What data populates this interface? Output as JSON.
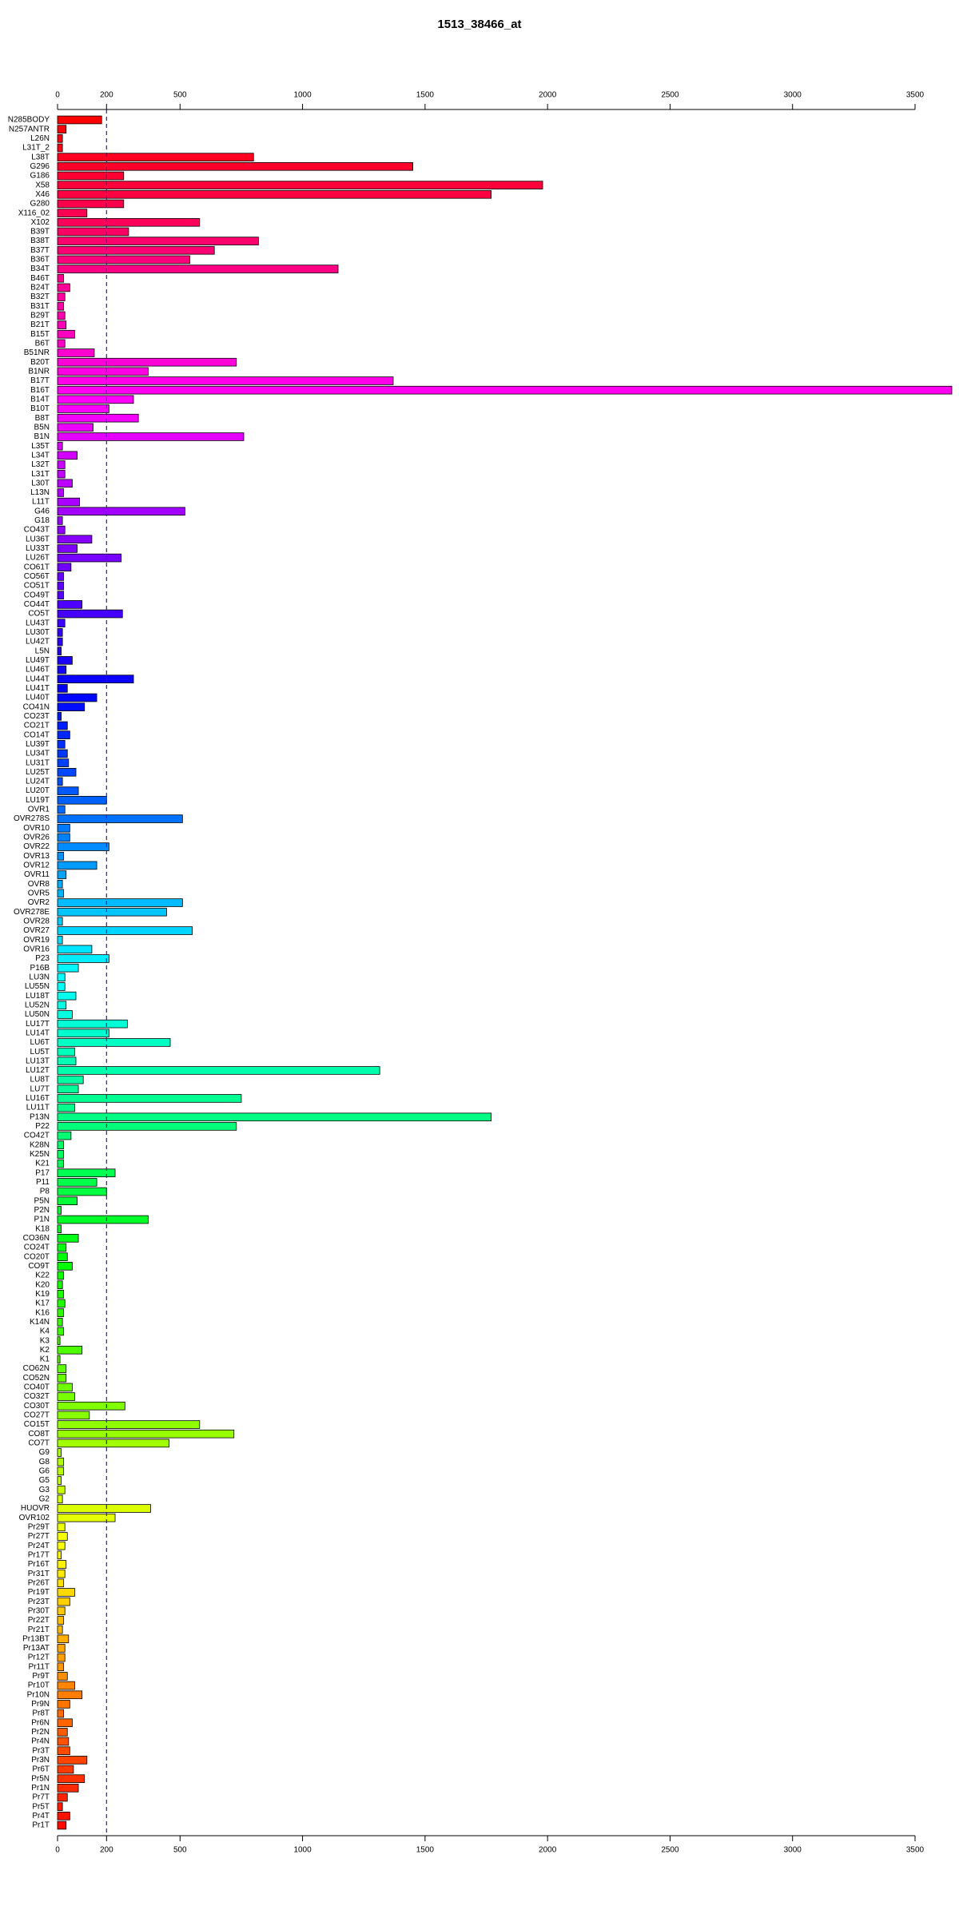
{
  "chart_data": {
    "type": "hbar",
    "title": "1513_38466_at",
    "categories": [
      "N285BODY",
      "N257ANTR",
      "L26N",
      "L31T_2",
      "L38T",
      "G296",
      "G186",
      "X58",
      "X46",
      "G280",
      "X116_02",
      "X102",
      "B39T",
      "B38T",
      "B37T",
      "B36T",
      "B34T",
      "B46T",
      "B24T",
      "B32T",
      "B31T",
      "B29T",
      "B21T",
      "B15T",
      "B6T",
      "B51NR",
      "B20T",
      "B1NR",
      "B17T",
      "B16T",
      "B14T",
      "B10T",
      "B8T",
      "B5N",
      "B1N",
      "L35T",
      "L34T",
      "L32T",
      "L31T",
      "L30T",
      "L13N",
      "L11T",
      "G46",
      "G18",
      "CO43T",
      "LU36T",
      "LU33T",
      "LU26T",
      "CO61T",
      "CO56T",
      "CO51T",
      "CO49T",
      "CO44T",
      "CO5T",
      "LU43T",
      "LU30T",
      "LU42T",
      "L5N",
      "LU49T",
      "LU46T",
      "LU44T",
      "LU41T",
      "LU40T",
      "CO41N",
      "CO23T",
      "CO21T",
      "CO14T",
      "LU39T",
      "LU34T",
      "LU31T",
      "LU25T",
      "LU24T",
      "LU20T",
      "LU19T",
      "OVR1",
      "OVR278S",
      "OVR10",
      "OVR26",
      "OVR22",
      "OVR13",
      "OVR12",
      "OVR11",
      "OVR8",
      "OVR5",
      "OVR2",
      "OVR278E",
      "OVR28",
      "OVR27",
      "OVR19",
      "OVR16",
      "P23",
      "P16B",
      "LU3N",
      "LU55N",
      "LU18T",
      "LU52N",
      "LU50N",
      "LU17T",
      "LU14T",
      "LU6T",
      "LU5T",
      "LU13T",
      "LU12T",
      "LU8T",
      "LU7T",
      "LU16T",
      "LU11T",
      "P13N",
      "P22",
      "CO42T",
      "K28N",
      "K25N",
      "K21",
      "P17",
      "P11",
      "P8",
      "P5N",
      "P2N",
      "P1N",
      "K18",
      "CO36N",
      "CO24T",
      "CO20T",
      "CO9T",
      "K22",
      "K20",
      "K19",
      "K17",
      "K16",
      "K14N",
      "K4",
      "K3",
      "K2",
      "K1",
      "CO62N",
      "CO52N",
      "CO40T",
      "CO32T",
      "CO30T",
      "CO27T",
      "CO15T",
      "CO8T",
      "CO7T",
      "G9",
      "G8",
      "G6",
      "G5",
      "G3",
      "G2",
      "HUOVR",
      "OVR102",
      "Pr29T",
      "Pr27T",
      "Pr24T",
      "Pr17T",
      "Pr16T",
      "Pr31T",
      "Pr26T",
      "Pr19T",
      "Pr23T",
      "Pr30T",
      "Pr22T",
      "Pr21T",
      "Pr13BT",
      "Pr13AT",
      "Pr12T",
      "Pr11T",
      "Pr9T",
      "Pr10T",
      "Pr10N",
      "Pr9N",
      "Pr8T",
      "Pr6N",
      "Pr2N",
      "Pr4N",
      "Pr3T",
      "Pr3N",
      "Pr6T",
      "Pr5N",
      "Pr1N",
      "Pr7T",
      "Pr5T",
      "Pr4T",
      "Pr1T"
    ],
    "values": [
      180,
      35,
      20,
      20,
      800,
      1450,
      270,
      1980,
      1770,
      270,
      120,
      580,
      290,
      820,
      640,
      540,
      1145,
      25,
      50,
      30,
      25,
      30,
      35,
      70,
      30,
      150,
      730,
      370,
      1370,
      3650,
      310,
      210,
      330,
      145,
      760,
      20,
      80,
      30,
      30,
      60,
      25,
      90,
      520,
      20,
      30,
      140,
      80,
      260,
      55,
      25,
      25,
      25,
      100,
      265,
      30,
      20,
      20,
      15,
      60,
      35,
      310,
      40,
      160,
      110,
      15,
      40,
      50,
      30,
      40,
      45,
      75,
      20,
      85,
      200,
      30,
      510,
      50,
      50,
      210,
      25,
      160,
      35,
      20,
      25,
      510,
      445,
      20,
      550,
      20,
      140,
      210,
      85,
      30,
      30,
      75,
      35,
      60,
      285,
      210,
      460,
      70,
      75,
      1315,
      105,
      85,
      750,
      70,
      1770,
      730,
      55,
      25,
      25,
      25,
      235,
      160,
      200,
      80,
      15,
      370,
      15,
      85,
      35,
      40,
      60,
      25,
      20,
      25,
      30,
      25,
      20,
      25,
      10,
      100,
      10,
      35,
      35,
      60,
      70,
      275,
      130,
      580,
      720,
      455,
      15,
      25,
      25,
      15,
      30,
      20,
      380,
      235,
      30,
      40,
      30,
      15,
      35,
      30,
      25,
      70,
      50,
      30,
      25,
      20,
      45,
      30,
      30,
      25,
      40,
      70,
      100,
      50,
      25,
      60,
      40,
      45,
      50,
      120,
      65,
      110,
      85,
      40,
      20,
      50,
      35
    ],
    "xlim": [
      0,
      3650
    ],
    "xticks": [
      0,
      200,
      500,
      1000,
      1500,
      2000,
      2500,
      3000,
      3500
    ],
    "reference_line": 200,
    "palette": "rainbow"
  }
}
